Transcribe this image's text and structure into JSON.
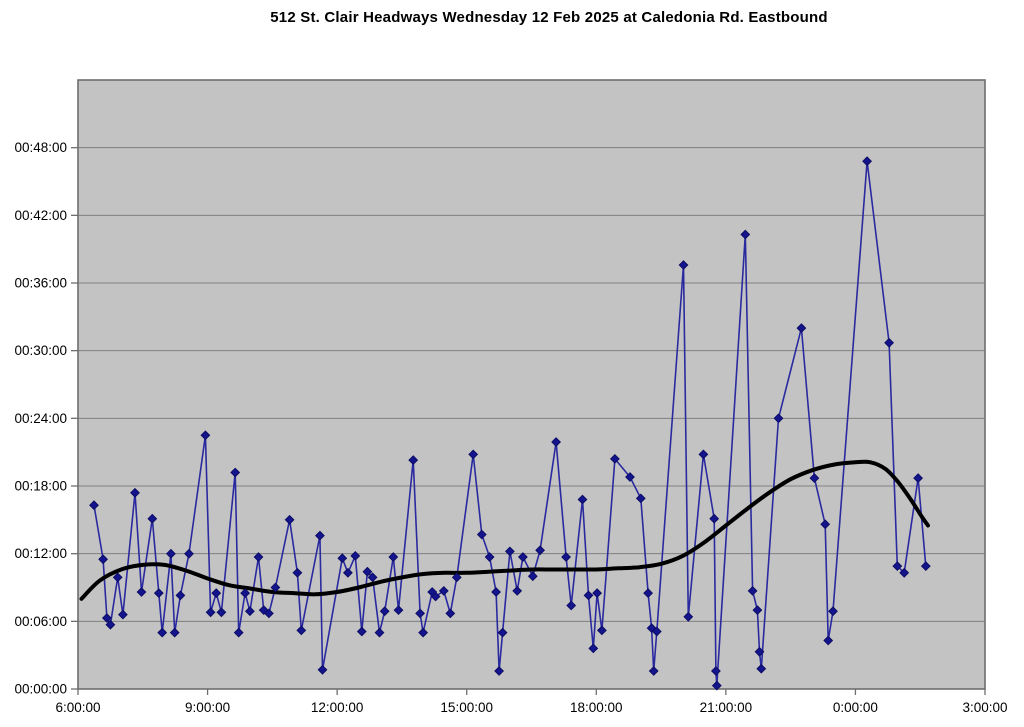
{
  "chart_data": {
    "type": "line",
    "title": "512 St. Clair Headways Wednesday 12 Feb 2025 at Caledonia Rd. Eastbound",
    "xlabel": "",
    "ylabel": "",
    "legend": "none",
    "grid": "horizontal-only",
    "plot_bg_color": "#c3c3c3",
    "grid_color": "#808080",
    "border_color": "#6e6e6e",
    "x_axis": {
      "unit": "time of day (hours, 24 = midnight next day)",
      "min_hour": 6,
      "max_hour": 27,
      "ticks": [
        {
          "hour": 6,
          "label": "6:00:00"
        },
        {
          "hour": 9,
          "label": "9:00:00"
        },
        {
          "hour": 12,
          "label": "12:00:00"
        },
        {
          "hour": 15,
          "label": "15:00:00"
        },
        {
          "hour": 18,
          "label": "18:00:00"
        },
        {
          "hour": 21,
          "label": "21:00:00"
        },
        {
          "hour": 24,
          "label": "0:00:00"
        },
        {
          "hour": 27,
          "label": "3:00:00"
        }
      ]
    },
    "y_axis": {
      "unit": "headway (minutes, labelled HH:MM:SS)",
      "min_minutes": 0,
      "max_minutes": 54,
      "tick_step_minutes": 6,
      "ticks": [
        {
          "minutes": 0,
          "label": "00:00:00"
        },
        {
          "minutes": 6,
          "label": "00:06:00"
        },
        {
          "minutes": 12,
          "label": "00:12:00"
        },
        {
          "minutes": 18,
          "label": "00:18:00"
        },
        {
          "minutes": 24,
          "label": "00:24:00"
        },
        {
          "minutes": 30,
          "label": "00:30:00"
        },
        {
          "minutes": 36,
          "label": "00:36:00"
        },
        {
          "minutes": 42,
          "label": "00:42:00"
        },
        {
          "minutes": 48,
          "label": "00:48:00"
        }
      ]
    },
    "series": [
      {
        "name": "headways",
        "style": "straight-line-with-diamond-markers",
        "line_color": "#2a2aa0",
        "marker_color": "#14148c",
        "points": [
          [
            6.37,
            16.3
          ],
          [
            6.58,
            11.5
          ],
          [
            6.67,
            6.3
          ],
          [
            6.75,
            5.7
          ],
          [
            6.92,
            9.9
          ],
          [
            7.04,
            6.6
          ],
          [
            7.32,
            17.4
          ],
          [
            7.47,
            8.6
          ],
          [
            7.72,
            15.1
          ],
          [
            7.87,
            8.5
          ],
          [
            7.95,
            5.0
          ],
          [
            8.15,
            12.0
          ],
          [
            8.24,
            5.0
          ],
          [
            8.37,
            8.3
          ],
          [
            8.57,
            12.0
          ],
          [
            8.95,
            22.5
          ],
          [
            9.07,
            6.8
          ],
          [
            9.2,
            8.5
          ],
          [
            9.32,
            6.8
          ],
          [
            9.64,
            19.2
          ],
          [
            9.72,
            5.0
          ],
          [
            9.87,
            8.5
          ],
          [
            9.98,
            6.9
          ],
          [
            10.18,
            11.7
          ],
          [
            10.3,
            7.0
          ],
          [
            10.42,
            6.7
          ],
          [
            10.57,
            9.0
          ],
          [
            10.9,
            15.0
          ],
          [
            11.08,
            10.3
          ],
          [
            11.17,
            5.2
          ],
          [
            11.6,
            13.6
          ],
          [
            11.66,
            1.7
          ],
          [
            12.12,
            11.6
          ],
          [
            12.25,
            10.3
          ],
          [
            12.42,
            11.8
          ],
          [
            12.57,
            5.1
          ],
          [
            12.7,
            10.4
          ],
          [
            12.82,
            9.9
          ],
          [
            12.98,
            5.0
          ],
          [
            13.1,
            6.9
          ],
          [
            13.3,
            11.7
          ],
          [
            13.42,
            7.0
          ],
          [
            13.76,
            20.3
          ],
          [
            13.92,
            6.7
          ],
          [
            13.99,
            5.0
          ],
          [
            14.2,
            8.6
          ],
          [
            14.28,
            8.2
          ],
          [
            14.47,
            8.7
          ],
          [
            14.62,
            6.7
          ],
          [
            14.77,
            9.9
          ],
          [
            15.15,
            20.8
          ],
          [
            15.35,
            13.7
          ],
          [
            15.53,
            11.7
          ],
          [
            15.68,
            8.6
          ],
          [
            15.75,
            1.6
          ],
          [
            15.83,
            5.0
          ],
          [
            16.0,
            12.2
          ],
          [
            16.17,
            8.7
          ],
          [
            16.3,
            11.7
          ],
          [
            16.53,
            10.0
          ],
          [
            16.7,
            12.3
          ],
          [
            17.07,
            21.9
          ],
          [
            17.3,
            11.7
          ],
          [
            17.42,
            7.4
          ],
          [
            17.68,
            16.8
          ],
          [
            17.82,
            8.3
          ],
          [
            17.93,
            3.6
          ],
          [
            18.02,
            8.5
          ],
          [
            18.13,
            5.2
          ],
          [
            18.43,
            20.4
          ],
          [
            18.78,
            18.8
          ],
          [
            19.03,
            16.9
          ],
          [
            19.2,
            8.5
          ],
          [
            19.28,
            5.4
          ],
          [
            19.33,
            1.6
          ],
          [
            19.4,
            5.1
          ],
          [
            20.02,
            37.6
          ],
          [
            20.13,
            6.4
          ],
          [
            20.48,
            20.8
          ],
          [
            20.73,
            15.1
          ],
          [
            20.77,
            1.6
          ],
          [
            20.79,
            0.3
          ],
          [
            21.45,
            40.3
          ],
          [
            21.62,
            8.7
          ],
          [
            21.73,
            7.0
          ],
          [
            21.78,
            3.3
          ],
          [
            21.82,
            1.8
          ],
          [
            22.22,
            24.0
          ],
          [
            22.75,
            32.0
          ],
          [
            23.05,
            18.7
          ],
          [
            23.3,
            14.6
          ],
          [
            23.37,
            4.3
          ],
          [
            23.48,
            6.9
          ],
          [
            24.27,
            46.8
          ],
          [
            24.78,
            30.7
          ],
          [
            24.97,
            10.9
          ],
          [
            25.13,
            10.3
          ],
          [
            25.45,
            18.7
          ],
          [
            25.63,
            10.9
          ]
        ]
      },
      {
        "name": "trend",
        "style": "smooth-thick-line",
        "line_color": "#000000",
        "points": [
          [
            6.08,
            8.0
          ],
          [
            6.5,
            9.6
          ],
          [
            7.0,
            10.6
          ],
          [
            7.5,
            11.0
          ],
          [
            8.0,
            11.0
          ],
          [
            8.5,
            10.5
          ],
          [
            9.0,
            9.8
          ],
          [
            9.5,
            9.2
          ],
          [
            10.0,
            8.9
          ],
          [
            10.5,
            8.6
          ],
          [
            11.0,
            8.5
          ],
          [
            11.5,
            8.4
          ],
          [
            12.0,
            8.6
          ],
          [
            12.5,
            9.0
          ],
          [
            13.0,
            9.5
          ],
          [
            13.5,
            9.9
          ],
          [
            14.0,
            10.2
          ],
          [
            14.5,
            10.3
          ],
          [
            15.0,
            10.3
          ],
          [
            15.5,
            10.4
          ],
          [
            16.0,
            10.5
          ],
          [
            16.5,
            10.6
          ],
          [
            17.0,
            10.6
          ],
          [
            17.5,
            10.6
          ],
          [
            18.0,
            10.6
          ],
          [
            18.5,
            10.7
          ],
          [
            19.0,
            10.8
          ],
          [
            19.5,
            11.1
          ],
          [
            20.0,
            11.8
          ],
          [
            20.5,
            13.0
          ],
          [
            21.0,
            14.5
          ],
          [
            21.5,
            16.0
          ],
          [
            22.0,
            17.4
          ],
          [
            22.5,
            18.6
          ],
          [
            23.0,
            19.4
          ],
          [
            23.5,
            19.9
          ],
          [
            24.0,
            20.1
          ],
          [
            24.35,
            20.1
          ],
          [
            24.7,
            19.5
          ],
          [
            25.0,
            18.3
          ],
          [
            25.3,
            16.7
          ],
          [
            25.55,
            15.2
          ],
          [
            25.68,
            14.5
          ]
        ]
      }
    ]
  }
}
